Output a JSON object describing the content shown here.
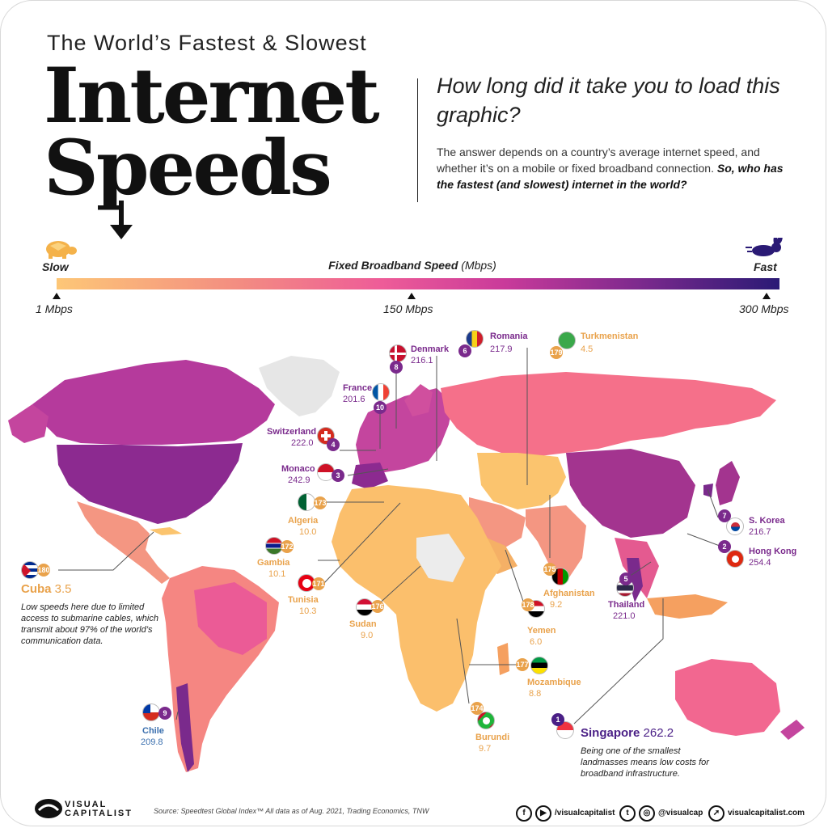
{
  "header": {
    "small_title": "The World’s Fastest & Slowest",
    "big_title_line1": "Internet",
    "big_title_line2": "Speeds",
    "question": "How long did it take you to load this graphic?",
    "description_part1": "The answer depends on a country’s average internet speed, and whether it’s on a mobile or fixed broadband connection. ",
    "description_bold": "So, who has the fastest (and slowest) internet in the world?"
  },
  "scale": {
    "slow_label": "Slow",
    "fast_label": "Fast",
    "title_bold": "Fixed Broadband Speed",
    "title_unit": " (Mbps)",
    "tick_min": "1 Mbps",
    "tick_mid": "150 Mbps",
    "tick_max": "300 Mbps",
    "range_mbps": [
      1,
      300
    ],
    "gradient_colors": [
      "#fdc777",
      "#f38d81",
      "#ee5c98",
      "#c93a9a",
      "#7f2a8e",
      "#2a1a75"
    ]
  },
  "countries": {
    "romania": {
      "rank": "6",
      "name": "Romania",
      "speed": "217.9",
      "color": "#7a2a8c"
    },
    "turkmenistan": {
      "rank": "179",
      "name": "Turkmenistan",
      "speed": "4.5",
      "color": "#e9a24b"
    },
    "denmark": {
      "rank": "8",
      "name": "Denmark",
      "speed": "216.1",
      "color": "#7a2a8c"
    },
    "france": {
      "rank": "10",
      "name": "France",
      "speed": "201.6",
      "color": "#7a2a8c"
    },
    "switzerland": {
      "rank": "4",
      "name": "Switzerland",
      "speed": "222.0",
      "color": "#7a2a8c"
    },
    "monaco": {
      "rank": "3",
      "name": "Monaco",
      "speed": "242.9",
      "color": "#7a2a8c"
    },
    "algeria": {
      "rank": "173",
      "name": "Algeria",
      "speed": "10.0",
      "color": "#e9a24b"
    },
    "gambia": {
      "rank": "172",
      "name": "Gambia",
      "speed": "10.1",
      "color": "#e9a24b"
    },
    "tunisia": {
      "rank": "171",
      "name": "Tunisia",
      "speed": "10.3",
      "color": "#e9a24b"
    },
    "sudan": {
      "rank": "176",
      "name": "Sudan",
      "speed": "9.0",
      "color": "#e9a24b"
    },
    "afghanistan": {
      "rank": "175",
      "name": "Afghanistan",
      "speed": "9.2",
      "color": "#e9a24b"
    },
    "yemen": {
      "rank": "178",
      "name": "Yemen",
      "speed": "6.0",
      "color": "#e9a24b"
    },
    "mozambique": {
      "rank": "177",
      "name": "Mozambique",
      "speed": "8.8",
      "color": "#e9a24b"
    },
    "burundi": {
      "rank": "174",
      "name": "Burundi",
      "speed": "9.7",
      "color": "#e9a24b"
    },
    "skorea": {
      "rank": "7",
      "name": "S. Korea",
      "speed": "216.7",
      "color": "#7a2a8c"
    },
    "hongkong": {
      "rank": "2",
      "name": "Hong Kong",
      "speed": "254.4",
      "color": "#7a2a8c"
    },
    "thailand": {
      "rank": "5",
      "name": "Thailand",
      "speed": "221.0",
      "color": "#7a2a8c"
    },
    "chile": {
      "rank": "9",
      "name": "Chile",
      "speed": "209.8",
      "color": "#7a2a8c"
    },
    "cuba": {
      "rank": "180",
      "name": "Cuba",
      "speed": "3.5",
      "color": "#e9a24b"
    },
    "singapore": {
      "rank": "1",
      "name": "Singapore",
      "speed": "262.2",
      "color": "#4a1f86"
    }
  },
  "notes": {
    "cuba": "Low speeds here due to limited access to submarine cables, which transmit about 97% of the world’s communication data.",
    "singapore": "Being one of the smallest landmasses means low costs for broadband infrastructure."
  },
  "footer": {
    "logo_line1": "VISUAL",
    "logo_line2": "CAPITALIST",
    "source": "Source: Speedtest Global Index™ All data as of Aug. 2021, Trading Economics, TNW",
    "social1": "/visualcapitalist",
    "social2": "@visualcap",
    "social3": "visualcapitalist.com"
  },
  "icons": [
    "turtle-icon",
    "rabbit-icon",
    "facebook-icon",
    "youtube-icon",
    "twitter-icon",
    "instagram-icon",
    "cursor-icon"
  ]
}
